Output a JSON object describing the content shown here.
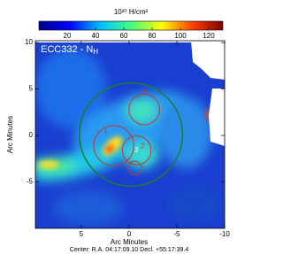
{
  "chart_data": {
    "type": "map",
    "title": "ECC332 - N",
    "title_subscript": "H",
    "colorbar_label": "10²⁰ H/cm²",
    "clim": [
      0,
      130
    ],
    "cticks": [
      20,
      40,
      60,
      80,
      100,
      120
    ],
    "colormap": [
      "#00008f",
      "#0000ff",
      "#00bfff",
      "#40ff80",
      "#ffff00",
      "#ff4000",
      "#800000"
    ],
    "xlabel": "Arc Minutes",
    "ylabel": "Arc Minutes",
    "xlim": [
      9.8,
      -10
    ],
    "xticks": [
      5,
      0,
      -5,
      -10
    ],
    "ylim": [
      -10,
      10.2
    ],
    "yticks": [
      -5,
      0,
      5,
      10
    ],
    "footer": "Center: R.A. 04:17:09.10   Decl. +55:17:39.4",
    "circles": [
      {
        "x": -0.2,
        "y": 0.1,
        "r": 5.4,
        "color": "#1f7a3a"
      },
      {
        "label": "4",
        "x": -1.6,
        "y": 2.8,
        "r": 1.6,
        "color": "#c0392b"
      },
      {
        "label": "1",
        "x": 1.6,
        "y": -1.1,
        "r": 2.1,
        "color": "#c0392b"
      },
      {
        "label": "2",
        "x": -0.8,
        "y": -1.6,
        "r": 1.5,
        "color": "#c0392b"
      },
      {
        "label": "3",
        "x": -0.6,
        "y": -3.5,
        "r": 0.7,
        "color": "#c0392b"
      }
    ]
  }
}
